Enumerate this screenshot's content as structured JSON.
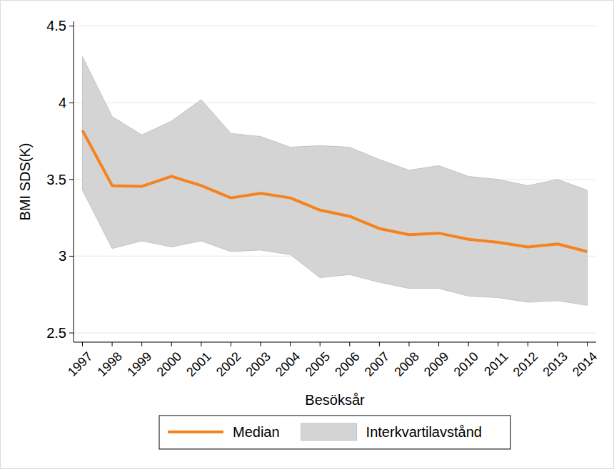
{
  "chart_data": {
    "type": "line",
    "x_label": "Besöksår",
    "y_label": "BMI SDS(K)",
    "x": [
      1997,
      1998,
      1999,
      2000,
      2001,
      2002,
      2003,
      2004,
      2005,
      2006,
      2007,
      2008,
      2009,
      2010,
      2011,
      2012,
      2013,
      2014
    ],
    "xlim": [
      1996.7,
      2014.3
    ],
    "xticks": [
      1997,
      1998,
      1999,
      2000,
      2001,
      2002,
      2003,
      2004,
      2005,
      2006,
      2007,
      2008,
      2009,
      2010,
      2011,
      2012,
      2013,
      2014
    ],
    "ylim": [
      2.44,
      4.53
    ],
    "yticks": [
      2.5,
      3,
      3.5,
      4,
      4.5
    ],
    "grid": true,
    "legend": "bottom",
    "series": [
      {
        "name": "Median",
        "type": "line",
        "color": "#f5821f",
        "values": [
          3.82,
          3.46,
          3.455,
          3.52,
          3.46,
          3.38,
          3.41,
          3.38,
          3.3,
          3.26,
          3.18,
          3.14,
          3.15,
          3.11,
          3.09,
          3.06,
          3.08,
          3.03
        ]
      },
      {
        "name": "Interkvartilavstånd",
        "type": "band",
        "color": "#d4d4d4",
        "upper": [
          4.3,
          3.91,
          3.79,
          3.88,
          4.02,
          3.8,
          3.78,
          3.71,
          3.72,
          3.71,
          3.63,
          3.56,
          3.59,
          3.52,
          3.5,
          3.46,
          3.5,
          3.43
        ],
        "lower": [
          3.43,
          3.05,
          3.1,
          3.06,
          3.1,
          3.03,
          3.04,
          3.01,
          2.86,
          2.88,
          2.83,
          2.79,
          2.79,
          2.74,
          2.73,
          2.7,
          2.71,
          2.68
        ]
      }
    ]
  }
}
